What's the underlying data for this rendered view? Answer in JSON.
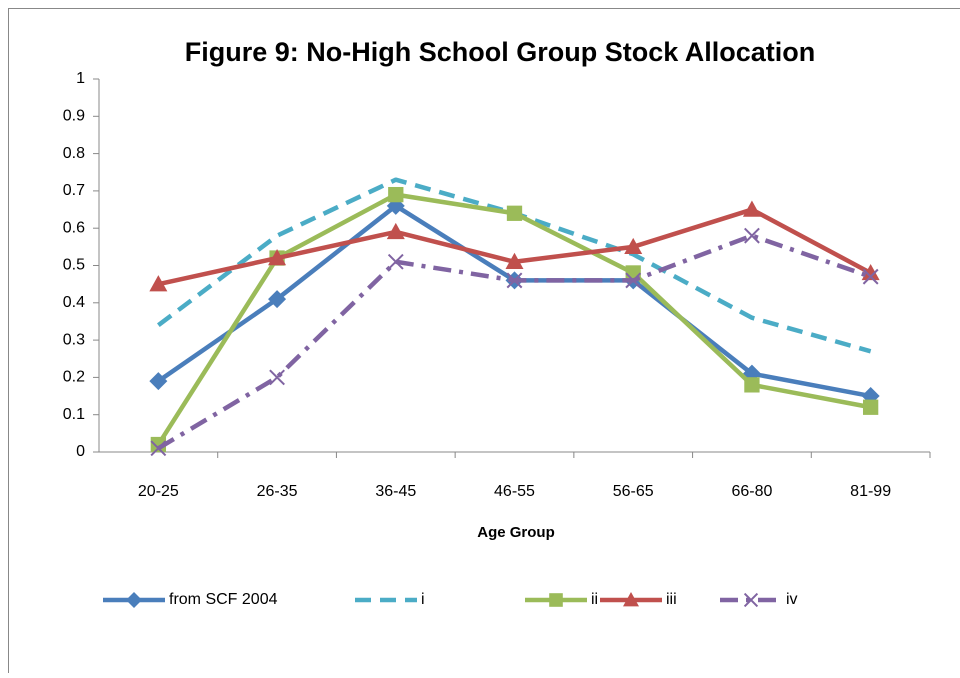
{
  "chart_data": {
    "type": "line",
    "title": "Figure 9: No-High School Group Stock Allocation",
    "x_label": "Age Group",
    "categories": [
      "20-25",
      "26-35",
      "36-45",
      "46-55",
      "56-65",
      "66-80",
      "81-99"
    ],
    "ylim": [
      0,
      1
    ],
    "yticks": [
      0,
      0.1,
      0.2,
      0.3,
      0.4,
      0.5,
      0.6,
      0.7,
      0.8,
      0.9,
      1
    ],
    "grid": false,
    "legend": "bottom",
    "series": [
      {
        "name": "from SCF 2004",
        "color": "#4a7ebb",
        "dash": "solid",
        "marker": "diamond",
        "values": [
          0.19,
          0.41,
          0.66,
          0.46,
          0.46,
          0.21,
          0.15
        ]
      },
      {
        "name": "i",
        "color": "#4bacc6",
        "dash": "dashed",
        "marker": "none",
        "values": [
          0.34,
          0.58,
          0.73,
          0.64,
          0.53,
          0.36,
          0.27
        ]
      },
      {
        "name": "ii",
        "color": "#9bbb59",
        "dash": "solid",
        "marker": "square",
        "values": [
          0.02,
          0.52,
          0.69,
          0.64,
          0.48,
          0.18,
          0.12
        ]
      },
      {
        "name": "iii",
        "color": "#c0504d",
        "dash": "solid",
        "marker": "triangle",
        "values": [
          0.45,
          0.52,
          0.59,
          0.51,
          0.55,
          0.65,
          0.48
        ]
      },
      {
        "name": "iv",
        "color": "#8064a2",
        "dash": "dashdot",
        "marker": "x",
        "values": [
          0.01,
          0.2,
          0.51,
          0.46,
          0.46,
          0.58,
          0.47
        ]
      }
    ]
  }
}
